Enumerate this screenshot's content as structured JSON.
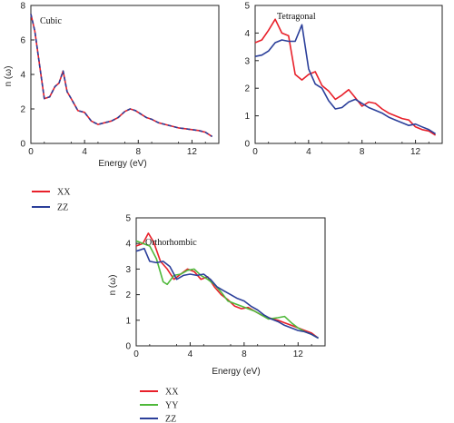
{
  "chart_data": [
    {
      "type": "line",
      "title": "Cubic",
      "xlabel": "Energy (eV)",
      "ylabel": "n (ω)",
      "xlim": [
        0,
        14
      ],
      "ylim": [
        0,
        8
      ],
      "xticks": [
        0,
        4,
        8,
        12
      ],
      "yticks": [
        0,
        2,
        4,
        6,
        8
      ],
      "grid": false,
      "legend_position": "below",
      "series": [
        {
          "name": "XX",
          "color": "#e8202a",
          "x": [
            0,
            0.3,
            0.6,
            1,
            1.4,
            1.8,
            2.1,
            2.4,
            2.7,
            3,
            3.5,
            4,
            4.5,
            5,
            5.5,
            6,
            6.5,
            7,
            7.4,
            7.8,
            8.2,
            8.6,
            9,
            9.5,
            10,
            10.5,
            11,
            11.5,
            12,
            12.5,
            13,
            13.5
          ],
          "values": [
            7.5,
            6.5,
            4.8,
            2.6,
            2.7,
            3.3,
            3.5,
            4.2,
            3.0,
            2.6,
            1.9,
            1.8,
            1.3,
            1.1,
            1.2,
            1.3,
            1.5,
            1.85,
            2.0,
            1.9,
            1.7,
            1.5,
            1.4,
            1.2,
            1.1,
            1.0,
            0.9,
            0.85,
            0.8,
            0.75,
            0.65,
            0.4
          ]
        },
        {
          "name": "ZZ",
          "color": "#2b3f9a",
          "x": [
            0,
            0.3,
            0.6,
            1,
            1.4,
            1.8,
            2.1,
            2.4,
            2.7,
            3,
            3.5,
            4,
            4.5,
            5,
            5.5,
            6,
            6.5,
            7,
            7.4,
            7.8,
            8.2,
            8.6,
            9,
            9.5,
            10,
            10.5,
            11,
            11.5,
            12,
            12.5,
            13,
            13.5
          ],
          "values": [
            7.5,
            6.5,
            4.8,
            2.6,
            2.7,
            3.3,
            3.5,
            4.2,
            3.0,
            2.6,
            1.9,
            1.8,
            1.3,
            1.1,
            1.2,
            1.3,
            1.5,
            1.85,
            2.0,
            1.9,
            1.7,
            1.5,
            1.4,
            1.2,
            1.1,
            1.0,
            0.9,
            0.85,
            0.8,
            0.75,
            0.65,
            0.4
          ]
        }
      ]
    },
    {
      "type": "line",
      "title": "Tetragonal",
      "xlabel": "",
      "ylabel": "",
      "xlim": [
        0,
        14
      ],
      "ylim": [
        0,
        5
      ],
      "xticks": [
        0,
        4,
        8,
        12
      ],
      "yticks": [
        0,
        1,
        2,
        3,
        4,
        5
      ],
      "grid": false,
      "series": [
        {
          "name": "XX",
          "color": "#e8202a",
          "x": [
            0,
            0.5,
            1,
            1.5,
            2,
            2.5,
            3,
            3.5,
            4,
            4.5,
            5,
            5.5,
            6,
            6.5,
            7,
            7.5,
            8,
            8.5,
            9,
            9.5,
            10,
            10.5,
            11,
            11.5,
            12,
            12.5,
            13,
            13.5
          ],
          "values": [
            3.65,
            3.75,
            4.1,
            4.5,
            4.0,
            3.9,
            2.5,
            2.3,
            2.5,
            2.6,
            2.1,
            1.9,
            1.6,
            1.75,
            1.95,
            1.65,
            1.35,
            1.5,
            1.45,
            1.25,
            1.1,
            1.0,
            0.9,
            0.85,
            0.6,
            0.5,
            0.45,
            0.3
          ]
        },
        {
          "name": "ZZ",
          "color": "#2b3f9a",
          "x": [
            0,
            0.5,
            1,
            1.5,
            2,
            2.5,
            3,
            3.5,
            4,
            4.5,
            5,
            5.5,
            6,
            6.5,
            7,
            7.5,
            8,
            8.5,
            9,
            9.5,
            10,
            10.5,
            11,
            11.5,
            12,
            12.5,
            13,
            13.5
          ],
          "values": [
            3.15,
            3.2,
            3.35,
            3.65,
            3.75,
            3.7,
            3.7,
            4.3,
            2.7,
            2.15,
            2.0,
            1.55,
            1.25,
            1.3,
            1.5,
            1.6,
            1.45,
            1.3,
            1.2,
            1.1,
            0.95,
            0.85,
            0.75,
            0.65,
            0.7,
            0.6,
            0.5,
            0.35
          ]
        }
      ]
    },
    {
      "type": "line",
      "title": "Orthorhombic",
      "xlabel": "Energy (eV)",
      "ylabel": "n (ω)",
      "xlim": [
        0,
        14
      ],
      "ylim": [
        0,
        5
      ],
      "xticks": [
        0,
        4,
        8,
        12
      ],
      "yticks": [
        0,
        1,
        2,
        3,
        4,
        5
      ],
      "grid": false,
      "legend_position": "below",
      "series": [
        {
          "name": "XX",
          "color": "#e8202a",
          "x": [
            0,
            0.5,
            0.9,
            1.3,
            1.8,
            2.3,
            2.8,
            3.3,
            3.8,
            4.3,
            4.8,
            5.3,
            5.8,
            6.3,
            6.8,
            7.3,
            7.8,
            8.3,
            8.8,
            9.3,
            9.8,
            10.5,
            11,
            11.5,
            12,
            12.5,
            13,
            13.5
          ],
          "values": [
            3.9,
            4.0,
            4.4,
            4.05,
            3.3,
            3.0,
            2.6,
            2.8,
            3.0,
            2.9,
            2.6,
            2.7,
            2.3,
            2.0,
            1.8,
            1.55,
            1.45,
            1.5,
            1.35,
            1.2,
            1.1,
            1.0,
            0.9,
            0.8,
            0.7,
            0.6,
            0.5,
            0.3
          ]
        },
        {
          "name": "YY",
          "color": "#4fb83a",
          "x": [
            0,
            0.5,
            1,
            1.5,
            2,
            2.3,
            2.8,
            3.3,
            3.8,
            4.3,
            4.8,
            5.3,
            5.8,
            6.3,
            6.8,
            7.3,
            7.8,
            8.3,
            8.8,
            9.3,
            9.8,
            10.5,
            11,
            11.5,
            12,
            12.5,
            13,
            13.5
          ],
          "values": [
            4.1,
            4.0,
            3.9,
            3.4,
            2.5,
            2.4,
            2.75,
            2.8,
            2.95,
            3.0,
            2.75,
            2.6,
            2.4,
            2.1,
            1.75,
            1.65,
            1.55,
            1.45,
            1.35,
            1.2,
            1.05,
            1.1,
            1.15,
            0.9,
            0.7,
            0.55,
            0.45,
            0.3
          ]
        },
        {
          "name": "ZZ",
          "color": "#2b3f9a",
          "x": [
            0,
            0.3,
            0.6,
            1,
            1.5,
            2,
            2.5,
            3,
            3.5,
            4,
            4.5,
            5,
            5.5,
            6,
            6.5,
            7,
            7.5,
            8,
            8.5,
            9,
            9.5,
            10,
            10.5,
            11,
            11.5,
            12,
            12.5,
            13,
            13.5
          ],
          "values": [
            3.7,
            3.75,
            3.8,
            3.3,
            3.25,
            3.3,
            3.1,
            2.6,
            2.75,
            2.8,
            2.75,
            2.8,
            2.6,
            2.3,
            2.15,
            2.0,
            1.85,
            1.75,
            1.55,
            1.4,
            1.2,
            1.05,
            0.95,
            0.8,
            0.7,
            0.6,
            0.55,
            0.45,
            0.3
          ]
        }
      ]
    }
  ]
}
